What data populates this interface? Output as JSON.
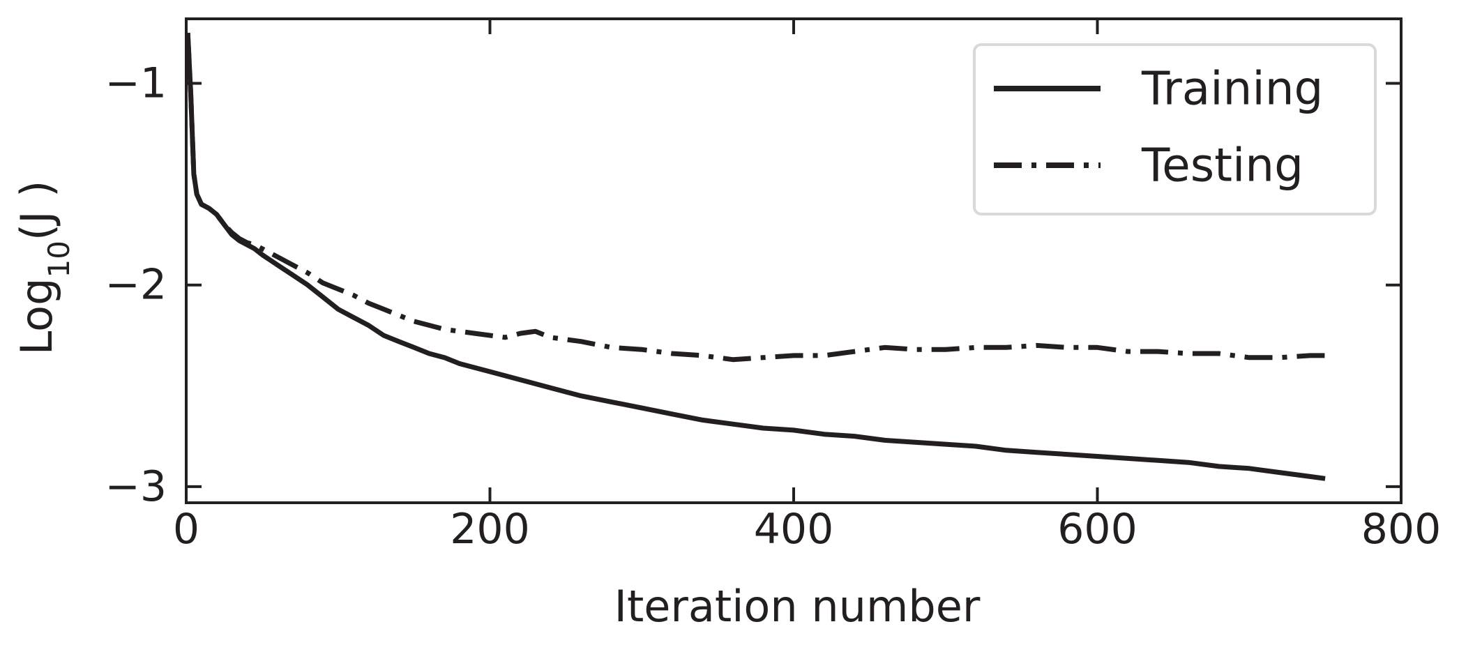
{
  "chart_data": {
    "type": "line",
    "xlabel": "Iteration number",
    "ylabel": {
      "base": "Log",
      "subscript": "10",
      "argument": "(J )"
    },
    "xlim": [
      0,
      800
    ],
    "ylim": [
      -3.08,
      -0.68
    ],
    "xticks": [
      0,
      200,
      400,
      600,
      800
    ],
    "xtick_labels": [
      "0",
      "200",
      "400",
      "600",
      "800"
    ],
    "yticks": [
      -1,
      -2,
      -3
    ],
    "ytick_labels": [
      "−1",
      "−2",
      "−3"
    ],
    "grid": false,
    "legend_position": "top-right",
    "colors": {
      "line": "#231f20",
      "axes": "#231f20",
      "legend_border": "#d9d9d9"
    },
    "series": [
      {
        "name": "Training",
        "style": "solid",
        "x": [
          1,
          3,
          5,
          7,
          10,
          15,
          20,
          25,
          30,
          35,
          40,
          45,
          50,
          60,
          70,
          80,
          90,
          100,
          110,
          120,
          130,
          140,
          150,
          160,
          170,
          180,
          190,
          200,
          220,
          240,
          260,
          280,
          300,
          320,
          340,
          360,
          380,
          400,
          420,
          440,
          460,
          480,
          500,
          520,
          540,
          560,
          580,
          600,
          620,
          640,
          660,
          680,
          700,
          720,
          740,
          750
        ],
        "y": [
          -0.75,
          -1.05,
          -1.45,
          -1.55,
          -1.6,
          -1.62,
          -1.65,
          -1.7,
          -1.75,
          -1.78,
          -1.8,
          -1.82,
          -1.85,
          -1.9,
          -1.95,
          -2.0,
          -2.06,
          -2.12,
          -2.16,
          -2.2,
          -2.25,
          -2.28,
          -2.31,
          -2.34,
          -2.36,
          -2.39,
          -2.41,
          -2.43,
          -2.47,
          -2.51,
          -2.55,
          -2.58,
          -2.61,
          -2.64,
          -2.67,
          -2.69,
          -2.71,
          -2.72,
          -2.74,
          -2.75,
          -2.77,
          -2.78,
          -2.79,
          -2.8,
          -2.82,
          -2.83,
          -2.84,
          -2.85,
          -2.86,
          -2.87,
          -2.88,
          -2.9,
          -2.91,
          -2.93,
          -2.95,
          -2.96
        ]
      },
      {
        "name": "Testing",
        "style": "dashdot",
        "x": [
          1,
          3,
          5,
          7,
          10,
          15,
          20,
          25,
          30,
          35,
          40,
          45,
          50,
          60,
          70,
          80,
          90,
          100,
          110,
          120,
          130,
          140,
          150,
          160,
          170,
          180,
          190,
          200,
          210,
          220,
          230,
          240,
          250,
          260,
          280,
          300,
          320,
          340,
          360,
          380,
          400,
          420,
          440,
          460,
          480,
          500,
          520,
          540,
          560,
          580,
          600,
          620,
          640,
          660,
          680,
          700,
          720,
          740,
          750
        ],
        "y": [
          -0.75,
          -1.05,
          -1.45,
          -1.55,
          -1.6,
          -1.62,
          -1.65,
          -1.7,
          -1.74,
          -1.77,
          -1.79,
          -1.8,
          -1.82,
          -1.86,
          -1.9,
          -1.94,
          -1.99,
          -2.02,
          -2.05,
          -2.09,
          -2.12,
          -2.15,
          -2.18,
          -2.2,
          -2.22,
          -2.23,
          -2.24,
          -2.25,
          -2.26,
          -2.24,
          -2.23,
          -2.26,
          -2.27,
          -2.28,
          -2.31,
          -2.32,
          -2.34,
          -2.35,
          -2.37,
          -2.36,
          -2.35,
          -2.35,
          -2.33,
          -2.31,
          -2.32,
          -2.32,
          -2.31,
          -2.31,
          -2.3,
          -2.31,
          -2.31,
          -2.33,
          -2.33,
          -2.34,
          -2.34,
          -2.36,
          -2.36,
          -2.35,
          -2.35
        ]
      }
    ]
  }
}
